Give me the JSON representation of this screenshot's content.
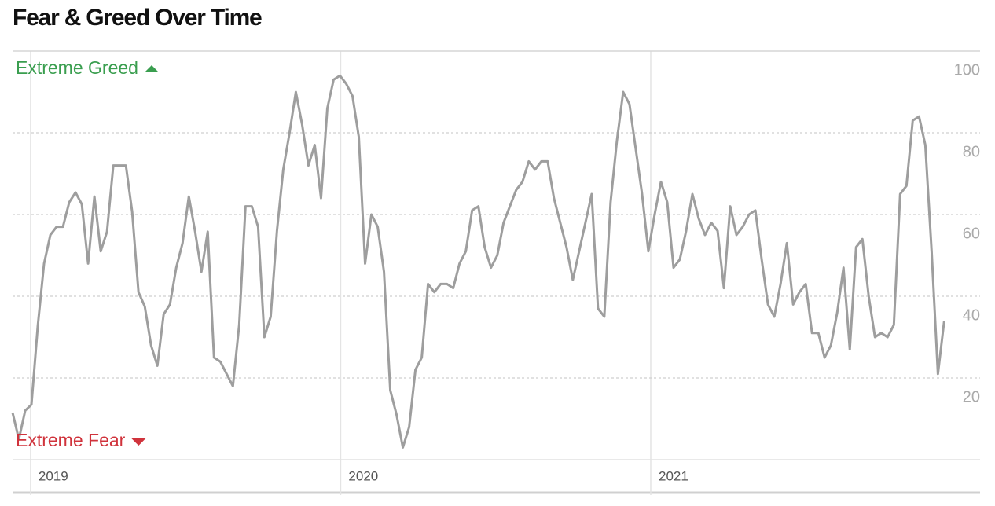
{
  "chart_data": {
    "type": "line",
    "title": "Fear & Greed Over Time",
    "annotations": [
      "Extreme Greed",
      "Extreme Fear"
    ],
    "annotation_colors": [
      "#3a9e4f",
      "#d0333c"
    ],
    "color": "#9e9e9e",
    "grid": true,
    "xlim": [
      2018.942,
      2022.062
    ],
    "xticks": [
      2019,
      2020,
      2021
    ],
    "ylim": [
      0,
      100
    ],
    "yticks": [
      20,
      40,
      60,
      80,
      100
    ],
    "x": [
      2018.942,
      2018.9623,
      2018.9826,
      2019.0029,
      2019.0232,
      2019.0435,
      2019.0638,
      2019.0841,
      2019.1044,
      2019.1247,
      2019.145,
      2019.1653,
      2019.1856,
      2019.2059,
      2019.2262,
      2019.2465,
      2019.2668,
      2019.2871,
      2019.3074,
      2019.3277,
      2019.348,
      2019.3683,
      2019.3886,
      2019.4089,
      2019.4292,
      2019.4495,
      2019.4698,
      2019.4901,
      2019.5104,
      2019.5307,
      2019.551,
      2019.5713,
      2019.5916,
      2019.6119,
      2019.6322,
      2019.6525,
      2019.6728,
      2019.6931,
      2019.7134,
      2019.7337,
      2019.754,
      2019.7743,
      2019.7946,
      2019.8149,
      2019.8352,
      2019.8555,
      2019.8758,
      2019.8961,
      2019.9164,
      2019.9367,
      2019.957,
      2019.9773,
      2019.9976,
      2020.0179,
      2020.0382,
      2020.0585,
      2020.0788,
      2020.0991,
      2020.1194,
      2020.1397,
      2020.16,
      2020.1803,
      2020.2006,
      2020.2209,
      2020.2412,
      2020.2615,
      2020.2818,
      2020.3021,
      2020.3224,
      2020.3427,
      2020.363,
      2020.3833,
      2020.4036,
      2020.4239,
      2020.4442,
      2020.4645,
      2020.4848,
      2020.5051,
      2020.5254,
      2020.5457,
      2020.566,
      2020.5863,
      2020.6066,
      2020.6269,
      2020.6472,
      2020.6675,
      2020.6878,
      2020.7081,
      2020.7284,
      2020.7487,
      2020.769,
      2020.7893,
      2020.8096,
      2020.8299,
      2020.8502,
      2020.8705,
      2020.8908,
      2020.9111,
      2020.9314,
      2020.9517,
      2020.972,
      2020.9923,
      2021.0126,
      2021.0329,
      2021.0532,
      2021.0735,
      2021.0938,
      2021.1141,
      2021.1344,
      2021.1547,
      2021.175,
      2021.1953,
      2021.2156,
      2021.2359,
      2021.2562,
      2021.2765,
      2021.2968,
      2021.3171,
      2021.3374,
      2021.3577,
      2021.378,
      2021.3983,
      2021.4186,
      2021.4389,
      2021.4592,
      2021.4795,
      2021.4998,
      2021.5201,
      2021.5404,
      2021.5607,
      2021.581,
      2021.6013,
      2021.6216,
      2021.6419,
      2021.6622,
      2021.6825,
      2021.7028,
      2021.7231,
      2021.7434,
      2021.7637,
      2021.784,
      2021.8043,
      2021.8246,
      2021.8449,
      2021.8652,
      2021.8855,
      2021.9058,
      2021.9261,
      2021.9464
    ],
    "values": [
      11.5,
      5,
      12,
      13.5,
      32.7,
      48,
      55,
      57,
      57,
      63,
      65.4,
      62.5,
      48,
      64.4,
      51,
      55.8,
      72,
      72,
      72,
      60.6,
      41,
      37.5,
      28,
      23,
      35.6,
      38,
      47,
      53,
      64.4,
      55.8,
      46,
      55.8,
      25,
      24,
      21,
      18,
      33,
      62,
      62,
      57,
      30,
      35,
      56,
      71,
      80,
      90,
      82,
      72,
      77,
      64,
      86,
      93,
      94,
      92,
      89,
      79,
      48,
      60,
      57,
      46,
      17,
      11,
      3,
      8,
      22,
      25,
      43,
      41,
      43,
      43,
      42,
      48,
      51,
      61,
      62,
      52,
      47,
      50,
      58,
      62,
      66,
      68,
      73,
      71,
      73,
      73,
      64,
      58,
      52,
      44,
      51,
      58,
      65,
      37,
      35,
      63,
      78,
      90,
      87,
      76,
      65,
      51,
      60,
      68,
      63,
      47,
      49,
      56,
      65,
      59,
      55,
      58,
      56,
      42,
      62,
      55,
      57,
      60,
      61,
      49,
      38,
      35,
      43,
      53,
      38,
      41,
      43,
      31,
      31,
      25,
      28,
      36,
      47,
      27,
      52,
      54,
      40,
      30,
      31,
      30,
      33,
      65,
      67,
      83,
      84,
      77,
      51,
      21,
      34
    ]
  }
}
